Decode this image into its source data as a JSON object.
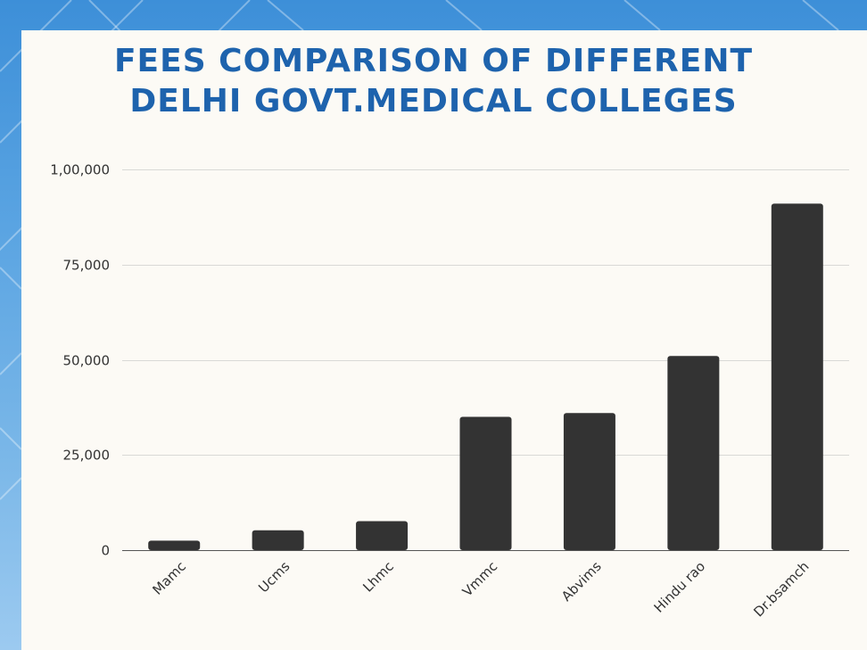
{
  "chart_data": {
    "type": "bar",
    "title": "FEES COMPARISON OF DIFFERENT DELHI GOVT.MEDICAL COLLEGES",
    "title_lines": [
      "FEES COMPARISON OF DIFFERENT",
      "DELHI GOVT.MEDICAL COLLEGES"
    ],
    "xlabel": "",
    "ylabel": "",
    "categories": [
      "Mamc",
      "Ucms",
      "Lhmc",
      "Vmmc",
      "Abvims",
      "Hindu rao",
      "Dr.bsamch"
    ],
    "values": [
      2500,
      5200,
      7600,
      35000,
      36000,
      51000,
      91000
    ],
    "ylim": [
      0,
      100000
    ],
    "yticks": [
      0,
      25000,
      50000,
      75000,
      100000
    ],
    "ytick_labels": [
      "0",
      "25,000",
      "50,000",
      "75,000",
      "1,00,000"
    ],
    "grid": true,
    "legend": "none",
    "colors": {
      "bar": "#333333",
      "title": "#1e63ad",
      "background": "#fcfaf5"
    }
  }
}
